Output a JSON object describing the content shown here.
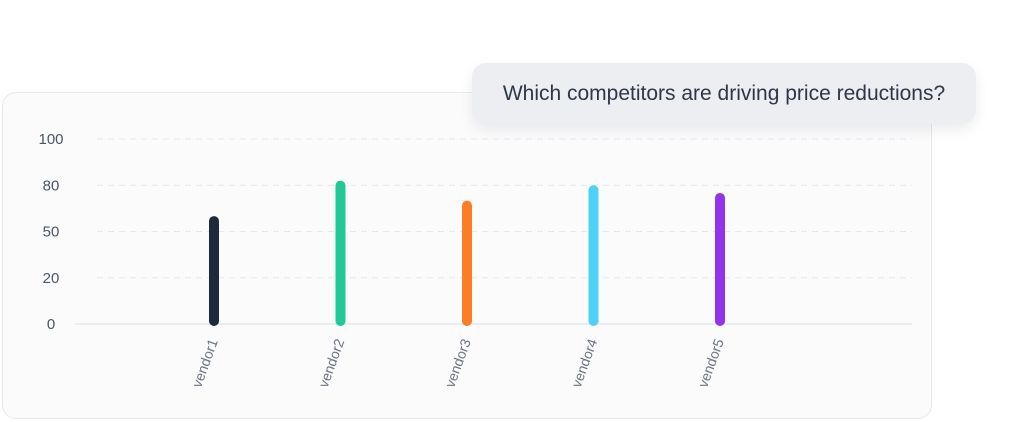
{
  "question": {
    "text": "Which competitors are driving price reductions?"
  },
  "chart_data": {
    "type": "bar",
    "title": "",
    "xlabel": "",
    "ylabel": "",
    "categories": [
      "vendor1",
      "vendor2",
      "vendor3",
      "vendor4",
      "vendor5"
    ],
    "values": [
      60,
      82,
      70,
      80,
      75
    ],
    "colors": [
      "#1e2a3b",
      "#20c997",
      "#fb7d24",
      "#4fd1f5",
      "#9333ea"
    ],
    "yticks": [
      {
        "value": 0,
        "label": "0"
      },
      {
        "value": 20,
        "label": "20"
      },
      {
        "value": 50,
        "label": "50"
      },
      {
        "value": 80,
        "label": "80"
      },
      {
        "value": 100,
        "label": "100"
      }
    ],
    "ylim": [
      0,
      100
    ],
    "grid": true,
    "grid_style": "dashed",
    "legend": "none"
  }
}
